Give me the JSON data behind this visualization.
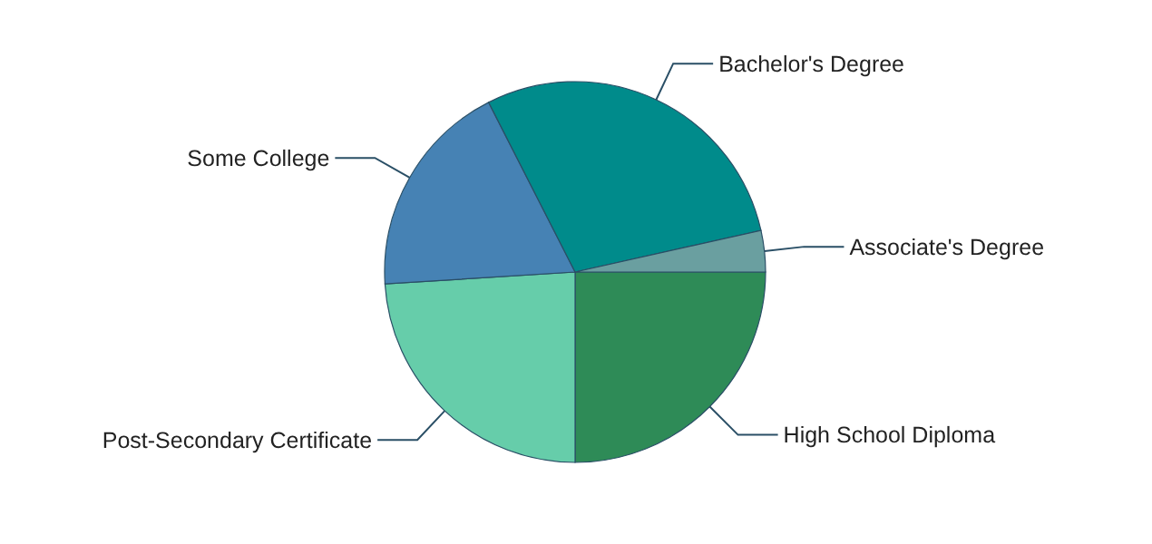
{
  "chart_data": {
    "type": "pie",
    "categories": [
      "High School Diploma",
      "Post-Secondary Certificate",
      "Some College",
      "Bachelor's Degree",
      "Associate's Degree"
    ],
    "values": [
      25,
      24,
      18.5,
      29,
      3.5
    ],
    "colors": [
      "#2e8b57",
      "#66cdaa",
      "#4682b4",
      "#008b8b",
      "#6a9fa0"
    ],
    "legend": false
  }
}
